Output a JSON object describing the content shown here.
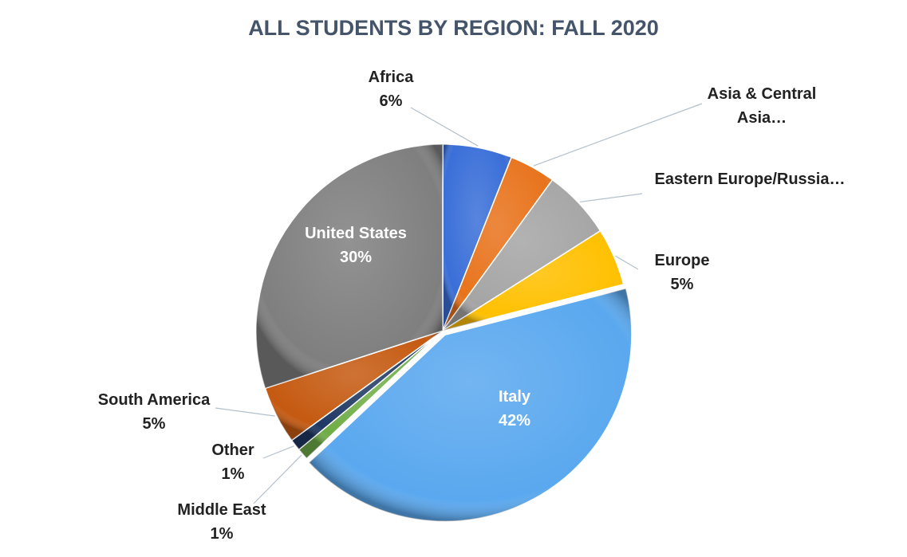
{
  "chart_data": {
    "type": "pie",
    "title": "ALL STUDENTS BY REGION: FALL 2020",
    "categories": [
      "Africa",
      "Asia & Central Asia…",
      "Eastern Europe/Russia…",
      "Europe",
      "Italy",
      "Middle East",
      "Other",
      "South America",
      "United States"
    ],
    "values": [
      6,
      4,
      6,
      5,
      42,
      1,
      1,
      5,
      30
    ],
    "value_labels": [
      "6%",
      null,
      null,
      "5%",
      "42%",
      "1%",
      "1%",
      "5%",
      "30%"
    ],
    "colors": [
      "#3a6fd8",
      "#e8731c",
      "#a5a5a5",
      "#ffc000",
      "#5aa8ef",
      "#70ad47",
      "#1f3864",
      "#c55a11",
      "#7f7f7f"
    ]
  }
}
